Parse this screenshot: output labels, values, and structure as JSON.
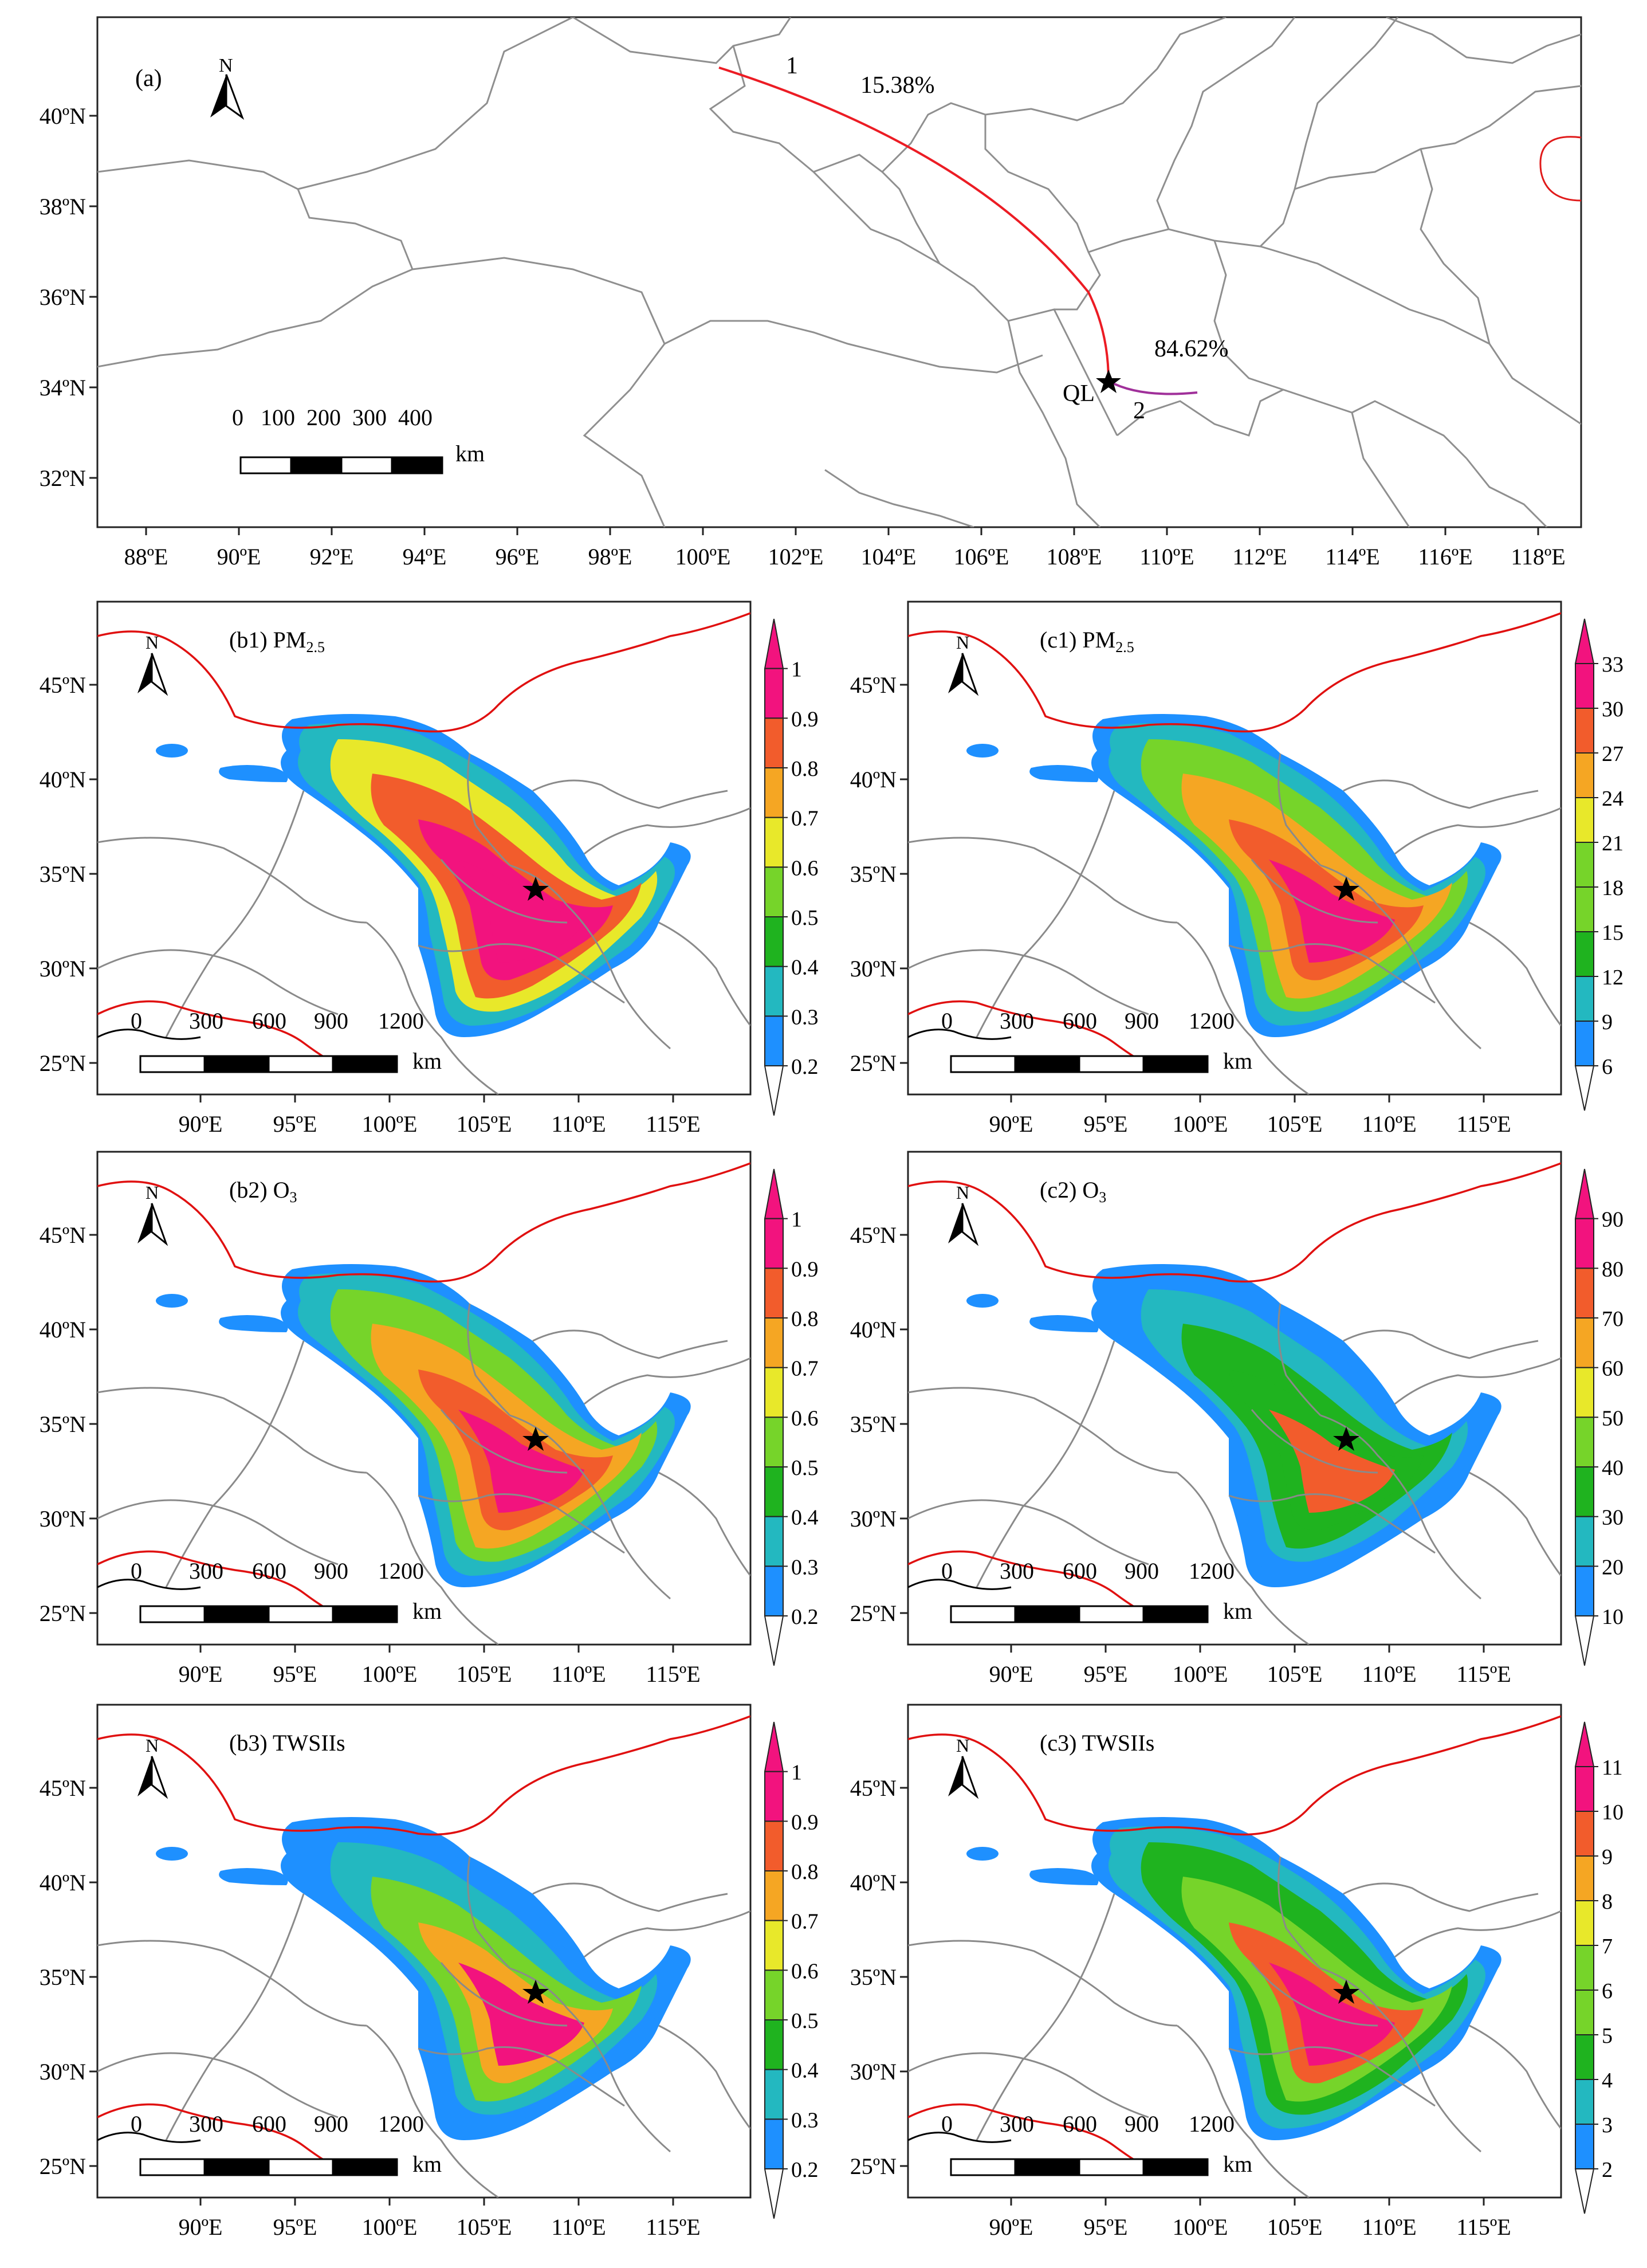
{
  "panel_a": {
    "label": "(a)",
    "north": "N",
    "x_ticks": [
      "88ºE",
      "90ºE",
      "92ºE",
      "94ºE",
      "96ºE",
      "98ºE",
      "100ºE",
      "102ºE",
      "104ºE",
      "106ºE",
      "108ºE",
      "110ºE",
      "112ºE",
      "114ºE",
      "116ºE",
      "118ºE"
    ],
    "y_ticks": [
      "40ºN",
      "38ºN",
      "36ºN",
      "34ºN",
      "32ºN"
    ],
    "scale_numbers": "0   100  200  300  400",
    "scale_unit": "km",
    "site_label": "QL",
    "trajectories": [
      {
        "id": "1",
        "share": "15.38%",
        "color": "#ee1c1c"
      },
      {
        "id": "2",
        "share": "84.62%",
        "color": "#a0309a"
      }
    ]
  },
  "map_panels": {
    "x_ticks": [
      "90ºE",
      "95ºE",
      "100ºE",
      "105ºE",
      "110ºE",
      "115ºE"
    ],
    "y_ticks": [
      "45ºN",
      "40ºN",
      "35ºN",
      "30ºN",
      "25ºN"
    ],
    "scale_numbers": [
      "0",
      "300",
      "600",
      "900",
      "1200"
    ],
    "scale_unit": "km",
    "north": "N",
    "b1": {
      "title": "(b1) PM",
      "sub": "2.5"
    },
    "c1": {
      "title": "(c1) PM",
      "sub": "2.5"
    },
    "b2": {
      "title": "(b2) O",
      "sub": "3"
    },
    "c2": {
      "title": "(c2) O",
      "sub": "3"
    },
    "b3": {
      "title": "(b3) TWSIIs",
      "sub": ""
    },
    "c3": {
      "title": "(c3) TWSIIs",
      "sub": ""
    }
  },
  "colorbars": {
    "b1": [
      "1",
      "0.9",
      "0.8",
      "0.7",
      "0.6",
      "0.5",
      "0.4",
      "0.3",
      "0.2"
    ],
    "c1": [
      "33",
      "30",
      "27",
      "24",
      "21",
      "18",
      "15",
      "12",
      "9",
      "6"
    ],
    "b2": [
      "1",
      "0.9",
      "0.8",
      "0.7",
      "0.6",
      "0.5",
      "0.4",
      "0.3",
      "0.2"
    ],
    "c2": [
      "90",
      "80",
      "70",
      "60",
      "50",
      "40",
      "30",
      "20",
      "10"
    ],
    "b3": [
      "1",
      "0.9",
      "0.8",
      "0.7",
      "0.6",
      "0.5",
      "0.4",
      "0.3",
      "0.2"
    ],
    "c3": [
      "11",
      "10",
      "9",
      "8",
      "7",
      "6",
      "5",
      "4",
      "3",
      "2"
    ]
  },
  "colors": {
    "scale": [
      "#ffffff",
      "#1e90ff",
      "#23b8c0",
      "#1fb31f",
      "#76d42a",
      "#e8e82a",
      "#f5a623",
      "#f25c2c",
      "#f2137e"
    ],
    "border": "#e01010",
    "province": "#8a8a8a"
  }
}
